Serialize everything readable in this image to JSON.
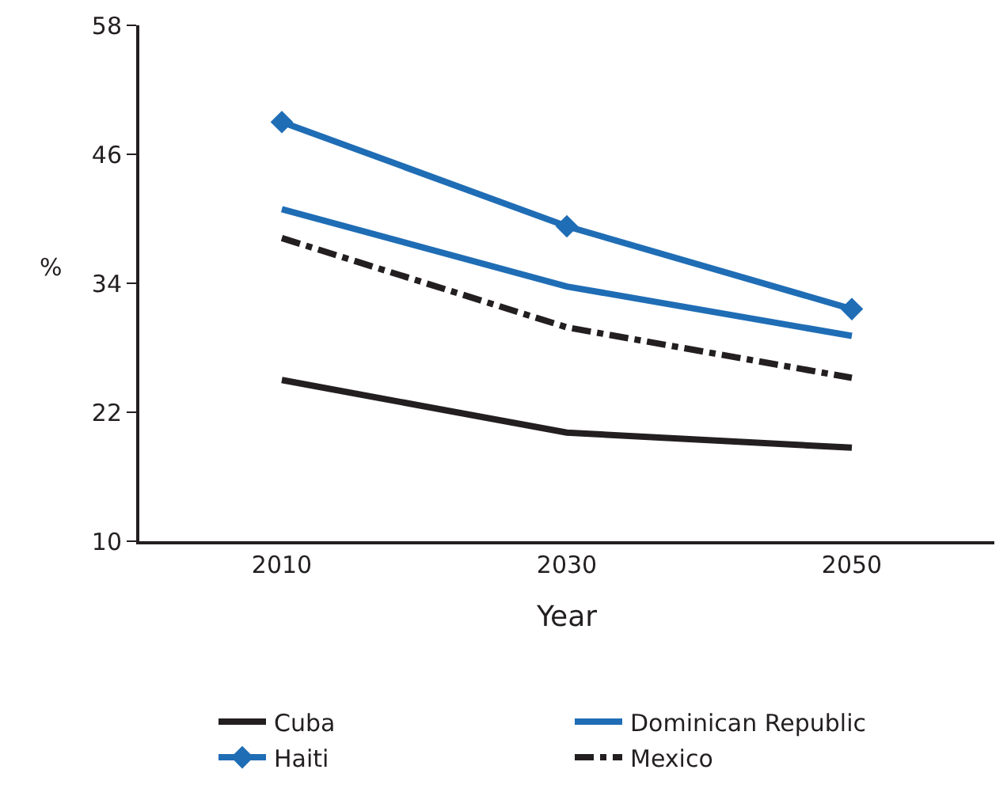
{
  "chart_data": {
    "type": "line",
    "xlabel": "Year",
    "ylabel": "%",
    "categories": [
      "2010",
      "2030",
      "2050"
    ],
    "series": [
      {
        "name": "Cuba",
        "color": "#231f20",
        "values": [
          25.0,
          20.1,
          18.7
        ],
        "marker": "none",
        "line_style": "solid"
      },
      {
        "name": "Dominican Republic",
        "color": "#1f6db5",
        "values": [
          40.9,
          33.7,
          29.1
        ],
        "marker": "none",
        "line_style": "solid"
      },
      {
        "name": "Haiti",
        "color": "#1f6db5",
        "values": [
          49.0,
          39.3,
          31.6
        ],
        "marker": "diamond",
        "line_style": "solid"
      },
      {
        "name": "Mexico",
        "color": "#231f20",
        "values": [
          38.2,
          29.9,
          25.2
        ],
        "marker": "none",
        "line_style": "dashdot"
      }
    ],
    "ylim": [
      10,
      58
    ],
    "yticks": [
      10,
      22,
      34,
      46,
      58
    ],
    "legend": "bottom"
  }
}
